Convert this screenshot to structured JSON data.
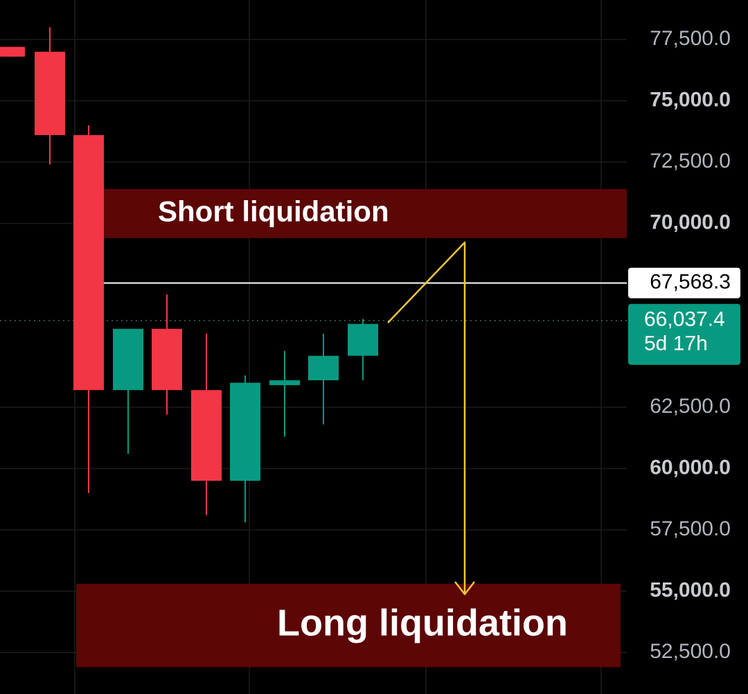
{
  "chart_data": {
    "type": "candlestick",
    "y_axis": {
      "ticks": [
        {
          "value": 77500,
          "label": "77,500.0",
          "bold": false
        },
        {
          "value": 75000,
          "label": "75,000.0",
          "bold": true
        },
        {
          "value": 72500,
          "label": "72,500.0",
          "bold": false
        },
        {
          "value": 70000,
          "label": "70,000.0",
          "bold": true
        },
        {
          "value": 62500,
          "label": "62,500.0",
          "bold": false
        },
        {
          "value": 60000,
          "label": "60,000.0",
          "bold": true
        },
        {
          "value": 57500,
          "label": "57,500.0",
          "bold": false
        },
        {
          "value": 55000,
          "label": "55,000.0",
          "bold": true
        },
        {
          "value": 52500,
          "label": "52,500.0",
          "bold": false
        }
      ],
      "range": [
        51800,
        79000
      ],
      "position": "right"
    },
    "grid": true,
    "candles": [
      {
        "open": 77200,
        "close": 76800,
        "high": 77200,
        "low": 76800,
        "dir": "down"
      },
      {
        "open": 77000,
        "close": 73600,
        "high": 78000,
        "low": 72400,
        "dir": "down"
      },
      {
        "open": 73600,
        "close": 63200,
        "high": 74000,
        "low": 59000,
        "dir": "down"
      },
      {
        "open": 63200,
        "close": 65700,
        "high": 65700,
        "low": 60600,
        "dir": "up"
      },
      {
        "open": 65700,
        "close": 63200,
        "high": 67100,
        "low": 62200,
        "dir": "down"
      },
      {
        "open": 63200,
        "close": 59500,
        "high": 65500,
        "low": 58100,
        "dir": "down"
      },
      {
        "open": 59500,
        "close": 63500,
        "high": 63800,
        "low": 57800,
        "dir": "up"
      },
      {
        "open": 63400,
        "close": 63600,
        "high": 64800,
        "low": 61300,
        "dir": "up"
      },
      {
        "open": 63600,
        "close": 64600,
        "high": 65500,
        "low": 61800,
        "dir": "up"
      },
      {
        "open": 64600,
        "close": 65900,
        "high": 66100,
        "low": 63600,
        "dir": "up"
      }
    ],
    "zones": [
      {
        "label": "Short liquidation",
        "from": 69400,
        "to": 71400
      },
      {
        "label": "Long liquidation",
        "from": 51900,
        "to": 55300
      }
    ],
    "horizontal_line": {
      "value": 67568.3,
      "label": "67,568.3"
    },
    "last_price": {
      "value": 66037.4,
      "label": "66,037.4",
      "countdown": "5d 17h"
    },
    "colors": {
      "up": "#089981",
      "down": "#f23645",
      "zone": "#5c0606",
      "projection": "#f0c53c",
      "background": "#000000",
      "grid": "#1c1c1c"
    }
  }
}
